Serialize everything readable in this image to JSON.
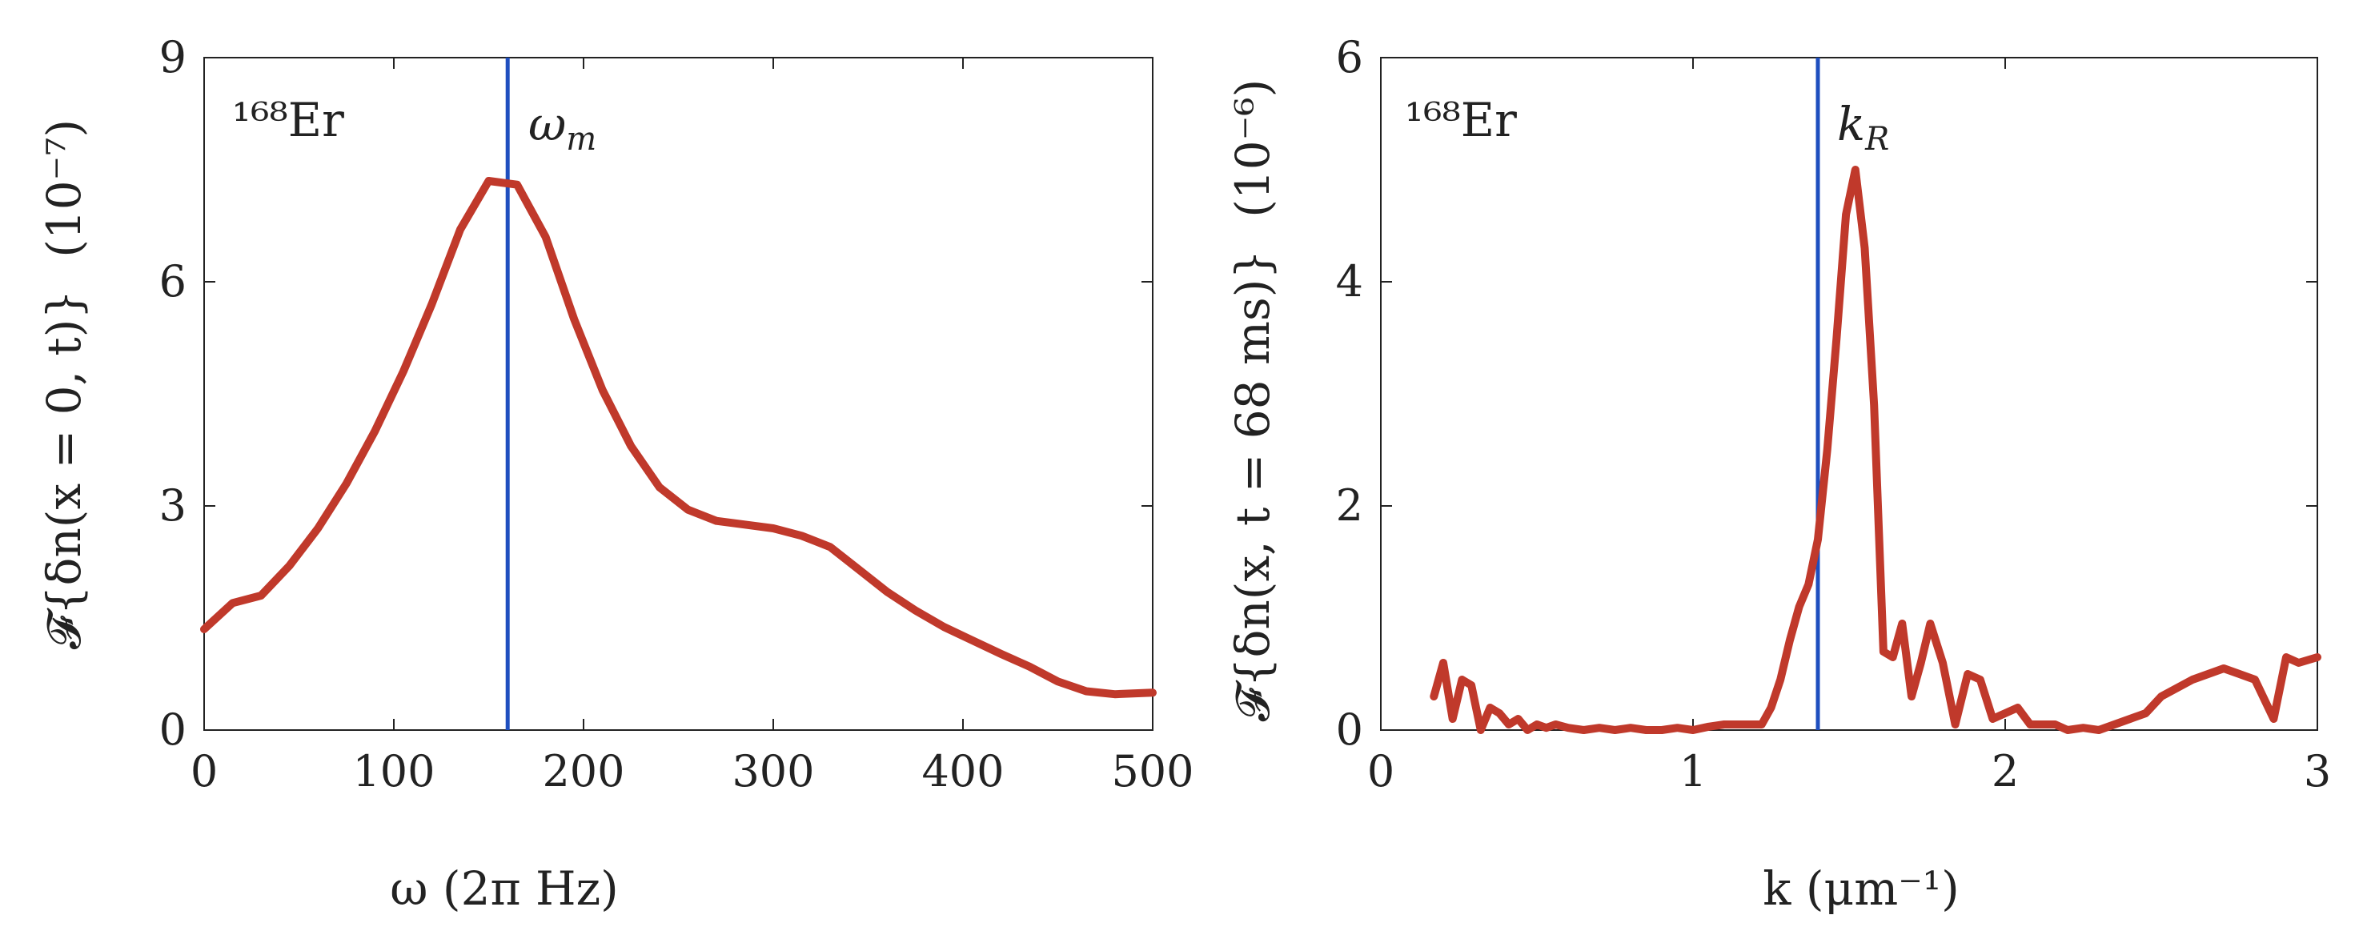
{
  "chart_data": [
    {
      "type": "line",
      "title": "",
      "xlabel": "ω (2π Hz)",
      "ylabel": "𝓕{δn(x = 0, t)}",
      "yunit": "(10⁻⁷)",
      "xlim": [
        0,
        500
      ],
      "ylim": [
        0,
        9
      ],
      "xticks": [
        0,
        100,
        200,
        300,
        400,
        500
      ],
      "yticks": [
        0,
        3,
        6,
        9
      ],
      "grid": false,
      "annotation": "¹⁶⁸Er",
      "vline": {
        "x": 160,
        "label": "ω_m",
        "label_main": "ω",
        "label_sub": "m",
        "color": "#1f4fbf"
      },
      "series": [
        {
          "color": "#c0392b",
          "x": [
            0,
            15,
            30,
            45,
            60,
            75,
            90,
            105,
            120,
            135,
            150,
            165,
            180,
            195,
            210,
            225,
            240,
            255,
            270,
            285,
            300,
            315,
            330,
            345,
            360,
            375,
            390,
            405,
            420,
            435,
            450,
            465,
            480,
            500
          ],
          "y": [
            1.35,
            1.7,
            1.8,
            2.2,
            2.7,
            3.3,
            4.0,
            4.8,
            5.7,
            6.7,
            7.35,
            7.3,
            6.6,
            5.5,
            4.55,
            3.8,
            3.25,
            2.95,
            2.8,
            2.75,
            2.7,
            2.6,
            2.45,
            2.15,
            1.85,
            1.6,
            1.38,
            1.2,
            1.02,
            0.85,
            0.65,
            0.52,
            0.48,
            0.5
          ]
        }
      ]
    },
    {
      "type": "line",
      "title": "",
      "xlabel": "k (μm⁻¹)",
      "ylabel": "𝓕{δn(x, t = 68 ms)}",
      "yunit": "(10⁻⁶)",
      "xlim": [
        0,
        3
      ],
      "ylim": [
        0,
        6
      ],
      "xticks": [
        0,
        1,
        2,
        3
      ],
      "yticks": [
        0,
        2,
        4,
        6
      ],
      "grid": false,
      "annotation": "¹⁶⁸Er",
      "vline": {
        "x": 1.4,
        "label": "k_R",
        "label_main": "k",
        "label_sub": "R",
        "color": "#1f4fbf"
      },
      "series": [
        {
          "color": "#c0392b",
          "x": [
            0.17,
            0.2,
            0.23,
            0.26,
            0.29,
            0.32,
            0.35,
            0.38,
            0.41,
            0.44,
            0.47,
            0.5,
            0.53,
            0.56,
            0.6,
            0.65,
            0.7,
            0.75,
            0.8,
            0.85,
            0.9,
            0.95,
            1.0,
            1.05,
            1.1,
            1.15,
            1.2,
            1.22,
            1.25,
            1.28,
            1.31,
            1.34,
            1.37,
            1.4,
            1.43,
            1.46,
            1.49,
            1.52,
            1.55,
            1.58,
            1.61,
            1.64,
            1.67,
            1.7,
            1.73,
            1.76,
            1.8,
            1.84,
            1.88,
            1.92,
            1.96,
            2.0,
            2.04,
            2.08,
            2.12,
            2.16,
            2.2,
            2.25,
            2.3,
            2.35,
            2.4,
            2.45,
            2.5,
            2.6,
            2.7,
            2.8,
            2.86,
            2.9,
            2.94,
            3.0
          ],
          "y": [
            0.3,
            0.6,
            0.1,
            0.45,
            0.4,
            0.0,
            0.2,
            0.15,
            0.05,
            0.1,
            0.0,
            0.05,
            0.02,
            0.05,
            0.02,
            0.0,
            0.02,
            0.0,
            0.02,
            0.0,
            0.0,
            0.02,
            0.0,
            0.03,
            0.05,
            0.05,
            0.05,
            0.05,
            0.2,
            0.45,
            0.8,
            1.1,
            1.3,
            1.7,
            2.5,
            3.5,
            4.6,
            5.0,
            4.3,
            2.9,
            0.7,
            0.65,
            0.95,
            0.3,
            0.6,
            0.95,
            0.6,
            0.05,
            0.5,
            0.45,
            0.1,
            0.15,
            0.2,
            0.05,
            0.05,
            0.05,
            0.0,
            0.02,
            0.0,
            0.05,
            0.1,
            0.15,
            0.3,
            0.45,
            0.55,
            0.45,
            0.1,
            0.65,
            0.6,
            0.65
          ]
        }
      ]
    }
  ]
}
